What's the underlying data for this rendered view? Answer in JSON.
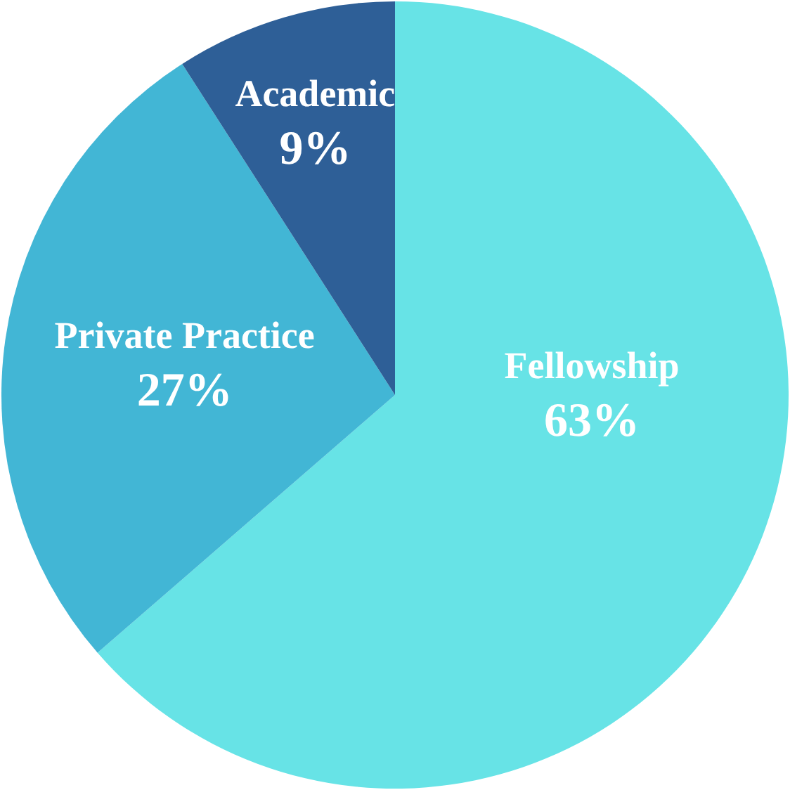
{
  "chart_data": {
    "type": "pie",
    "categories": [
      "Fellowship",
      "Private Practice",
      "Academic"
    ],
    "values": [
      63,
      27,
      9
    ],
    "colors": [
      "#67e3e6",
      "#42b6d5",
      "#2e5f97"
    ],
    "value_labels": [
      "63%",
      "27%",
      "9%"
    ]
  }
}
